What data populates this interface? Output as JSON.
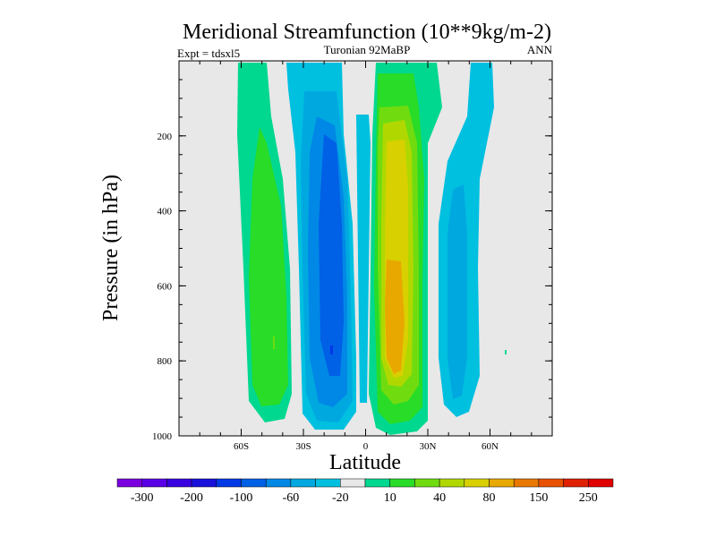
{
  "chart_data": {
    "type": "contour",
    "title": "Meridional Streamfunction (10**9kg/m-2)",
    "subtitle_left": "Expt = tdsxl5",
    "subtitle_center": "Turonian  92MaBP",
    "subtitle_right": "ANN",
    "xlabel": "Latitude",
    "ylabel": "Pressure (in hPa)",
    "xlim": [
      -90,
      90
    ],
    "ylim": [
      1000,
      0
    ],
    "x_ticks": [
      {
        "value": -60,
        "label": "60S"
      },
      {
        "value": -30,
        "label": "30S"
      },
      {
        "value": 0,
        "label": "0"
      },
      {
        "value": 30,
        "label": "30N"
      },
      {
        "value": 60,
        "label": "60N"
      }
    ],
    "y_ticks": [
      {
        "value": 200,
        "label": "200"
      },
      {
        "value": 400,
        "label": "400"
      },
      {
        "value": 600,
        "label": "600"
      },
      {
        "value": 800,
        "label": "800"
      },
      {
        "value": 1000,
        "label": "1000"
      }
    ],
    "colorbar": {
      "colors": [
        "#7a00e0",
        "#5a00e6",
        "#3a00e0",
        "#1a10dc",
        "#0038e6",
        "#0060e6",
        "#0088e6",
        "#00a8e0",
        "#00c0e0",
        "#e8e8e8",
        "#00d890",
        "#28dc28",
        "#70dc10",
        "#b0d800",
        "#d8d000",
        "#e8a800",
        "#e87800",
        "#e85000",
        "#e02000",
        "#e00000"
      ],
      "labels": [
        "-300",
        "-200",
        "-100",
        "-60",
        "-20",
        "10",
        "40",
        "80",
        "150",
        "250"
      ]
    },
    "field_description": {
      "background_color": "#e8e8e8",
      "features": [
        {
          "name": "SH polar cell",
          "sign": "positive",
          "peak": 40,
          "lat_range": [
            -70,
            -50
          ]
        },
        {
          "name": "SH Ferrel/Hadley",
          "sign": "negative",
          "peak": -100,
          "lat_range": [
            -35,
            -5
          ]
        },
        {
          "name": "NH Hadley cell",
          "sign": "positive",
          "peak": 150,
          "lat_range": [
            0,
            25
          ]
        },
        {
          "name": "NH Ferrel cell",
          "sign": "negative",
          "peak": -60,
          "lat_range": [
            35,
            55
          ]
        }
      ]
    }
  }
}
